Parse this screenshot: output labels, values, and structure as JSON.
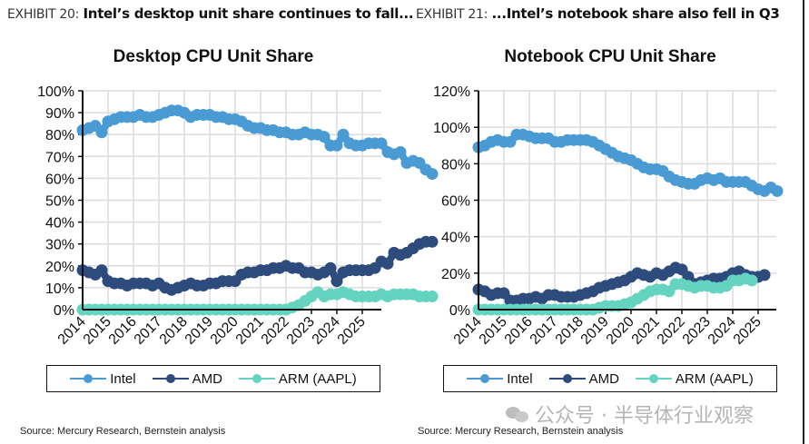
{
  "exhibits": [
    {
      "number": "EXHIBIT 20:",
      "title": "Intel’s desktop unit share continues to fall..."
    },
    {
      "number": "EXHIBIT 21:",
      "title": "...Intel’s notebook share also fell in Q3"
    }
  ],
  "source": "Source: Mercury Research, Bernstein analysis",
  "watermark": "公众号 · 半导体行业观察",
  "colors": {
    "intel": "#4a9bd4",
    "amd": "#2d4b7c",
    "arm": "#64d4c0",
    "grid": "#dcdcdc",
    "axis": "#111111"
  },
  "chart_data": [
    {
      "type": "line",
      "title": "Desktop CPU Unit Share",
      "xlabel": "",
      "ylabel": "",
      "x_tick_labels": [
        "2014",
        "2015",
        "2016",
        "2017",
        "2018",
        "2019",
        "2020",
        "2021",
        "2022",
        "2023",
        "2024",
        "2025"
      ],
      "y_tick_labels": [
        "0%",
        "10%",
        "20%",
        "30%",
        "40%",
        "50%",
        "60%",
        "70%",
        "80%",
        "90%",
        "100%"
      ],
      "ylim": [
        0,
        100
      ],
      "y_ticks": [
        0,
        10,
        20,
        30,
        40,
        50,
        60,
        70,
        80,
        90,
        100
      ],
      "x_range": [
        2014,
        2025.75
      ],
      "grid": true,
      "legend": "bottom",
      "legend_entries": [
        "Intel",
        "AMD",
        "ARM (AAPL)"
      ],
      "series": [
        {
          "name": "Intel",
          "x_start": 2014,
          "step": 0.25,
          "values": [
            82,
            83,
            84,
            81,
            86,
            87,
            88,
            88,
            88,
            89,
            88,
            88,
            89,
            90,
            91,
            91,
            90,
            88,
            89,
            89,
            89,
            88,
            88,
            87,
            87,
            86,
            84,
            83,
            83,
            82,
            82,
            81,
            81,
            80,
            80,
            81,
            80,
            80,
            79,
            75,
            75,
            80,
            76,
            75,
            75,
            76,
            76,
            76,
            72,
            71,
            72,
            67,
            68,
            67,
            64,
            62
          ]
        },
        {
          "name": "AMD",
          "x_start": 2014,
          "step": 0.25,
          "values": [
            18,
            17,
            16,
            18,
            13,
            12,
            12,
            11,
            12,
            12,
            12,
            11,
            12,
            10,
            9,
            10,
            11,
            12,
            11,
            11,
            12,
            12,
            13,
            13,
            13,
            16,
            17,
            17,
            18,
            18,
            19,
            19,
            20,
            19,
            19,
            17,
            17,
            16,
            17,
            19,
            13,
            17,
            18,
            18,
            18,
            18,
            19,
            22,
            21,
            26,
            25,
            26,
            28,
            30,
            31,
            31
          ]
        },
        {
          "name": "ARM (AAPL)",
          "x_start": 2014,
          "step": 0.25,
          "values": [
            0,
            0,
            0,
            0,
            0,
            0,
            0,
            0,
            0,
            0,
            0,
            0,
            0,
            0,
            0,
            0,
            0,
            0,
            0,
            0,
            0,
            0,
            0,
            0,
            0,
            0,
            0,
            0,
            0,
            0,
            0,
            0,
            0,
            1,
            2,
            4,
            6,
            8,
            6,
            7,
            7,
            8,
            7,
            6,
            6,
            6,
            6,
            7,
            6,
            7,
            7,
            7,
            7,
            6,
            6,
            6
          ]
        }
      ]
    },
    {
      "type": "line",
      "title": "Notebook CPU Unit Share",
      "xlabel": "",
      "ylabel": "",
      "x_tick_labels": [
        "2014",
        "2015",
        "2016",
        "2017",
        "2018",
        "2019",
        "2020",
        "2021",
        "2022",
        "2023",
        "2024",
        "2025"
      ],
      "y_tick_labels": [
        "0%",
        "20%",
        "40%",
        "60%",
        "80%",
        "100%",
        "120%"
      ],
      "ylim": [
        0,
        120
      ],
      "y_ticks": [
        0,
        20,
        40,
        60,
        80,
        100,
        120
      ],
      "x_range": [
        2014,
        2025.75
      ],
      "grid": true,
      "legend": "bottom",
      "legend_entries": [
        "Intel",
        "AMD",
        "ARM (AAPL)"
      ],
      "series": [
        {
          "name": "Intel",
          "x_start": 2014,
          "step": 0.25,
          "values": [
            89,
            90,
            92,
            93,
            92,
            92,
            96,
            96,
            95,
            94,
            94,
            94,
            92,
            92,
            93,
            93,
            93,
            93,
            92,
            90,
            88,
            86,
            84,
            83,
            82,
            80,
            78,
            77,
            77,
            76,
            73,
            71,
            70,
            69,
            69,
            71,
            72,
            71,
            72,
            70,
            70,
            70,
            70,
            68,
            66,
            65,
            67,
            65
          ]
        },
        {
          "name": "AMD",
          "x_start": 2014,
          "step": 0.25,
          "values": [
            11,
            10,
            8,
            9,
            9,
            5,
            5,
            6,
            6,
            7,
            6,
            8,
            8,
            7,
            7,
            7,
            8,
            9,
            10,
            12,
            13,
            14,
            15,
            16,
            18,
            20,
            19,
            18,
            20,
            19,
            21,
            23,
            22,
            18,
            14,
            15,
            16,
            17,
            17,
            18,
            20,
            21,
            19,
            18,
            18,
            19
          ]
        },
        {
          "name": "ARM (AAPL)",
          "x_start": 2014,
          "step": 0.25,
          "values": [
            0,
            0,
            0,
            0,
            0,
            0,
            0,
            0,
            0,
            0,
            0,
            0,
            0,
            0,
            0,
            0,
            0,
            0,
            0,
            1,
            2,
            2,
            2,
            3,
            4,
            6,
            8,
            10,
            11,
            11,
            10,
            14,
            14,
            13,
            12,
            13,
            13,
            12,
            12,
            13,
            16,
            16,
            17,
            16
          ]
        }
      ]
    }
  ]
}
